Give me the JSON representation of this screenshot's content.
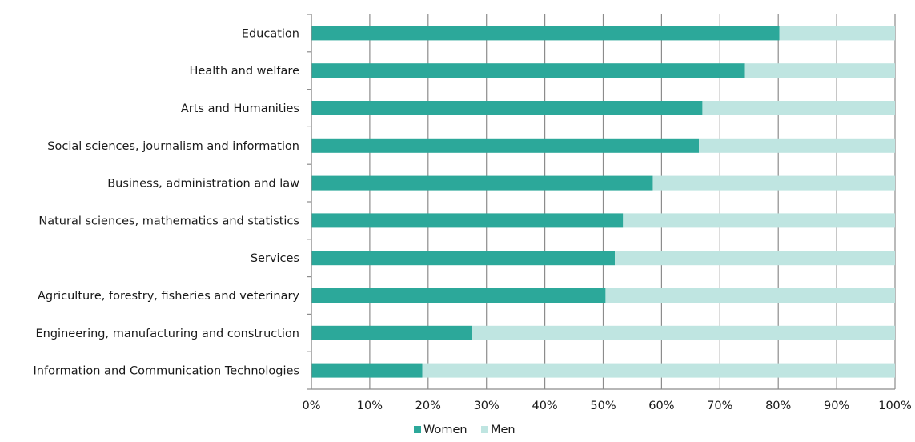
{
  "chart_data": {
    "type": "bar",
    "orientation": "horizontal",
    "stacked": "percent",
    "categories": [
      "Education",
      "Health and welfare",
      "Arts and Humanities",
      "Social sciences, journalism and information",
      "Business, administration and law",
      "Natural sciences, mathematics and statistics",
      "Services",
      "Agriculture, forestry, fisheries and veterinary",
      "Engineering, manufacturing and construction",
      "Information and Communication Technologies"
    ],
    "series": [
      {
        "name": "Women",
        "color": "#2ca89a",
        "values": [
          80.2,
          74.3,
          67.0,
          66.4,
          58.5,
          53.4,
          52.0,
          50.4,
          27.5,
          19.0
        ]
      },
      {
        "name": "Men",
        "color": "#bfe5e1",
        "values": [
          19.8,
          25.7,
          33.0,
          33.6,
          41.5,
          46.6,
          48.0,
          49.6,
          72.5,
          81.0
        ]
      }
    ],
    "xticks": [
      "0%",
      "10%",
      "20%",
      "30%",
      "40%",
      "50%",
      "60%",
      "70%",
      "80%",
      "90%",
      "100%"
    ],
    "xlim": [
      0,
      100
    ],
    "grid": true,
    "legend_position": "bottom",
    "title": "",
    "xlabel": "",
    "ylabel": ""
  }
}
